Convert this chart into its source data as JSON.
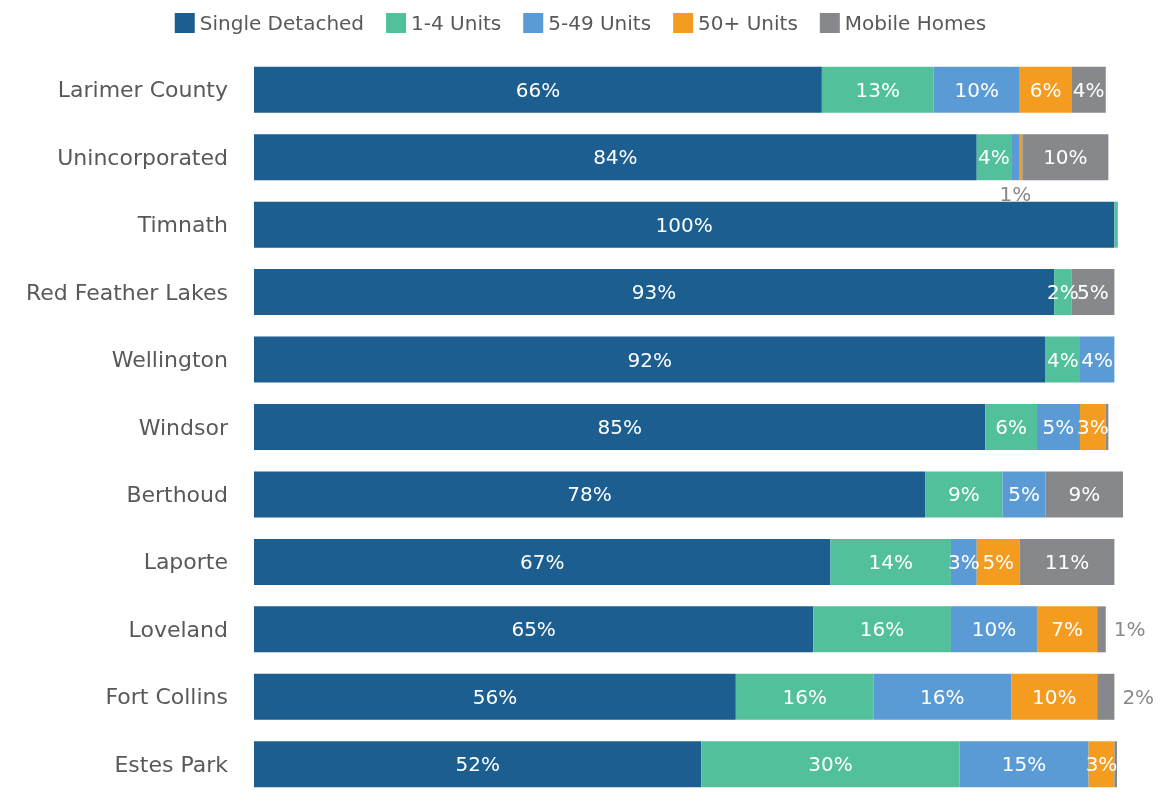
{
  "chart_data": {
    "type": "bar",
    "orientation": "horizontal",
    "stacked": true,
    "legend": "top",
    "categories": [
      "Larimer County",
      "Unincorporated",
      "Timnath",
      "Red Feather Lakes",
      "Wellington",
      "Windsor",
      "Berthoud",
      "Laporte",
      "Loveland",
      "Fort Collins",
      "Estes Park"
    ],
    "series": [
      {
        "name": "Single Detached",
        "color": "#1b5e8f",
        "values": [
          66,
          84,
          100,
          93,
          92,
          85,
          78,
          67,
          65,
          56,
          52
        ],
        "value_labels": [
          "66%",
          "84%",
          "100%",
          "93%",
          "92%",
          "85%",
          "78%",
          "67%",
          "65%",
          "56%",
          "52%"
        ]
      },
      {
        "name": "1-4 Units",
        "color": "#53c09c",
        "values": [
          13,
          4,
          0.4,
          2,
          4,
          6,
          9,
          14,
          16,
          16,
          30
        ],
        "value_labels": [
          "13%",
          "4%",
          null,
          "2%",
          "4%",
          "6%",
          "9%",
          "14%",
          "16%",
          "16%",
          "30%"
        ]
      },
      {
        "name": "5-49 Units",
        "color": "#5b9bd5",
        "values": [
          10,
          1,
          0,
          0,
          4,
          5,
          5,
          3,
          10,
          16,
          15
        ],
        "value_labels": [
          "10%",
          "1%",
          null,
          null,
          "4%",
          "5%",
          "5%",
          "3%",
          "10%",
          "16%",
          "15%"
        ]
      },
      {
        "name": "50+ Units",
        "color": "#f39c1f",
        "values": [
          6,
          0.3,
          0,
          0,
          0,
          3,
          0,
          5,
          7,
          10,
          3
        ],
        "value_labels": [
          "6%",
          null,
          null,
          null,
          null,
          "3%",
          null,
          "5%",
          "7%",
          "10%",
          "3%"
        ]
      },
      {
        "name": "Mobile Homes",
        "color": "#86888b",
        "values": [
          4,
          10,
          0,
          5,
          0,
          0.3,
          9,
          11,
          1,
          2,
          0.3
        ],
        "value_labels": [
          "4%",
          "10%",
          null,
          "5%",
          null,
          null,
          "9%",
          "11%",
          "1%",
          "2%",
          null
        ]
      }
    ]
  }
}
